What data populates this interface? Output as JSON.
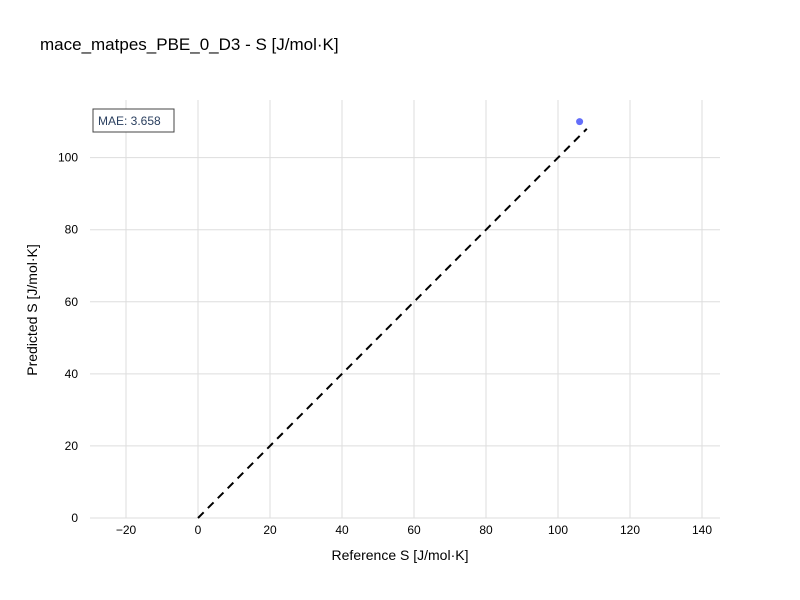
{
  "chart_data": {
    "type": "scatter",
    "title": "mace_matpes_PBE_0_D3 - S [J/mol·K]",
    "xlabel": "Reference S [J/mol·K]",
    "ylabel": "Predicted S [J/mol·K]",
    "xlim": [
      -30,
      145
    ],
    "ylim": [
      0,
      116
    ],
    "xticks": [
      -20,
      0,
      20,
      40,
      60,
      80,
      100,
      120,
      140
    ],
    "yticks": [
      0,
      20,
      40,
      60,
      80,
      100
    ],
    "xtick_labels": [
      "−20",
      "0",
      "20",
      "40",
      "60",
      "80",
      "100",
      "120",
      "140"
    ],
    "ytick_labels": [
      "0",
      "20",
      "40",
      "60",
      "80",
      "100"
    ],
    "grid": true,
    "points": [
      {
        "x": 106,
        "y": 110
      }
    ],
    "point_color": "#636efa",
    "reference_line": {
      "from": [
        0,
        0
      ],
      "to": [
        108,
        108
      ],
      "color": "#000000",
      "style": "dashed"
    },
    "annotation": "MAE: 3.658"
  }
}
